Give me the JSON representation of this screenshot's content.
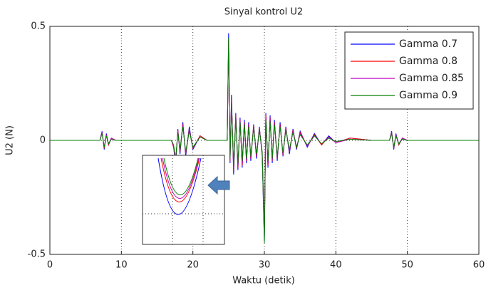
{
  "chart_data": {
    "type": "line",
    "title": "Sinyal kontrol U2",
    "x_label": "Waktu (detik)",
    "y_label": "U2 (N)",
    "xlim": [
      0,
      60
    ],
    "ylim": [
      -0.5,
      0.5
    ],
    "xticks": [
      0,
      10,
      20,
      30,
      40,
      50,
      60
    ],
    "yticks": [
      -0.5,
      0,
      0.5
    ],
    "grid": true,
    "legend": "upper right",
    "x": [
      0,
      7,
      7.3,
      7.6,
      7.9,
      8.2,
      8.6,
      9.2,
      10,
      13,
      17,
      17.3,
      17.6,
      17.9,
      18.2,
      18.6,
      19,
      19.5,
      20,
      21,
      22,
      24.8,
      25,
      25.2,
      25.4,
      25.7,
      26,
      26.3,
      26.6,
      26.9,
      27.2,
      27.5,
      27.8,
      28.1,
      28.5,
      28.9,
      29.3,
      29.7,
      30,
      30.2,
      30.5,
      30.8,
      31.1,
      31.4,
      31.8,
      32.2,
      32.6,
      33,
      33.5,
      34,
      34.5,
      35,
      36,
      37,
      38,
      39,
      40,
      42,
      45,
      47.5,
      47.8,
      48.1,
      48.4,
      48.8,
      49.3,
      50,
      53,
      60
    ],
    "series": [
      {
        "name": "Gamma 0.7",
        "color": "#0000ff",
        "values": [
          0,
          0,
          0.04,
          -0.04,
          0.03,
          -0.02,
          0.01,
          0,
          0,
          0,
          0,
          -0.03,
          -0.11,
          0.05,
          -0.06,
          0.08,
          -0.07,
          0.06,
          -0.04,
          0.02,
          0,
          0,
          0.47,
          -0.1,
          0.2,
          -0.15,
          0.12,
          -0.13,
          0.1,
          -0.12,
          0.09,
          -0.1,
          0.08,
          -0.09,
          0.07,
          -0.08,
          0.06,
          -0.07,
          -0.45,
          0.12,
          -0.12,
          0.11,
          -0.1,
          0.09,
          -0.09,
          0.08,
          -0.07,
          0.06,
          -0.06,
          0.05,
          -0.04,
          0.04,
          -0.03,
          0.03,
          -0.02,
          0.02,
          -0.01,
          0.01,
          0,
          0,
          0.04,
          -0.04,
          0.03,
          -0.02,
          0.01,
          0,
          0,
          0
        ]
      },
      {
        "name": "Gamma 0.8",
        "color": "#ff0000",
        "values": [
          0,
          0,
          0.035,
          -0.035,
          0.025,
          -0.02,
          0.01,
          0,
          0,
          0,
          0,
          -0.03,
          -0.09,
          0.045,
          -0.05,
          0.07,
          -0.06,
          0.05,
          -0.035,
          0.02,
          0,
          0,
          0.44,
          -0.09,
          0.18,
          -0.13,
          0.11,
          -0.12,
          0.09,
          -0.11,
          0.08,
          -0.09,
          0.07,
          -0.08,
          0.065,
          -0.07,
          0.055,
          -0.06,
          -0.42,
          0.11,
          -0.11,
          0.1,
          -0.09,
          0.08,
          -0.08,
          0.07,
          -0.065,
          0.055,
          -0.05,
          0.045,
          -0.035,
          0.035,
          -0.025,
          0.025,
          -0.02,
          0.015,
          -0.01,
          0.01,
          0,
          0,
          0.035,
          -0.035,
          0.025,
          -0.02,
          0.01,
          0,
          0,
          0
        ]
      },
      {
        "name": "Gamma 0.85",
        "color": "#bf00bf",
        "values": [
          0,
          0,
          0.035,
          -0.03,
          0.025,
          -0.015,
          0.01,
          0,
          0,
          0,
          0,
          -0.025,
          -0.085,
          0.04,
          -0.045,
          0.065,
          -0.055,
          0.045,
          -0.03,
          0.015,
          0,
          0,
          0.43,
          -0.085,
          0.17,
          -0.12,
          0.1,
          -0.11,
          0.085,
          -0.1,
          0.075,
          -0.085,
          0.065,
          -0.075,
          0.06,
          -0.065,
          0.05,
          -0.055,
          -0.4,
          0.1,
          -0.1,
          0.095,
          -0.085,
          0.075,
          -0.075,
          0.065,
          -0.06,
          0.05,
          -0.045,
          0.04,
          -0.03,
          0.03,
          -0.025,
          0.02,
          -0.015,
          0.015,
          -0.01,
          0.005,
          0,
          0,
          0.03,
          -0.03,
          0.025,
          -0.015,
          0.01,
          0,
          0,
          0
        ]
      },
      {
        "name": "Gamma 0.9",
        "color": "#008000",
        "values": [
          0,
          0,
          0.03,
          -0.03,
          0.02,
          -0.015,
          0.005,
          0,
          0,
          0,
          0,
          -0.02,
          -0.08,
          0.035,
          -0.04,
          0.06,
          -0.05,
          0.04,
          -0.03,
          0.015,
          0,
          0,
          0.45,
          -0.08,
          0.16,
          -0.11,
          0.09,
          -0.1,
          0.08,
          -0.09,
          0.07,
          -0.08,
          0.06,
          -0.07,
          0.055,
          -0.06,
          0.045,
          -0.05,
          -0.45,
          0.09,
          -0.09,
          0.085,
          -0.08,
          0.07,
          -0.07,
          0.06,
          -0.055,
          0.045,
          -0.04,
          0.035,
          -0.03,
          0.025,
          -0.02,
          0.02,
          -0.015,
          0.01,
          -0.005,
          0.005,
          0,
          0,
          0.03,
          -0.03,
          0.02,
          -0.015,
          0.005,
          0,
          0,
          0
        ]
      }
    ]
  }
}
